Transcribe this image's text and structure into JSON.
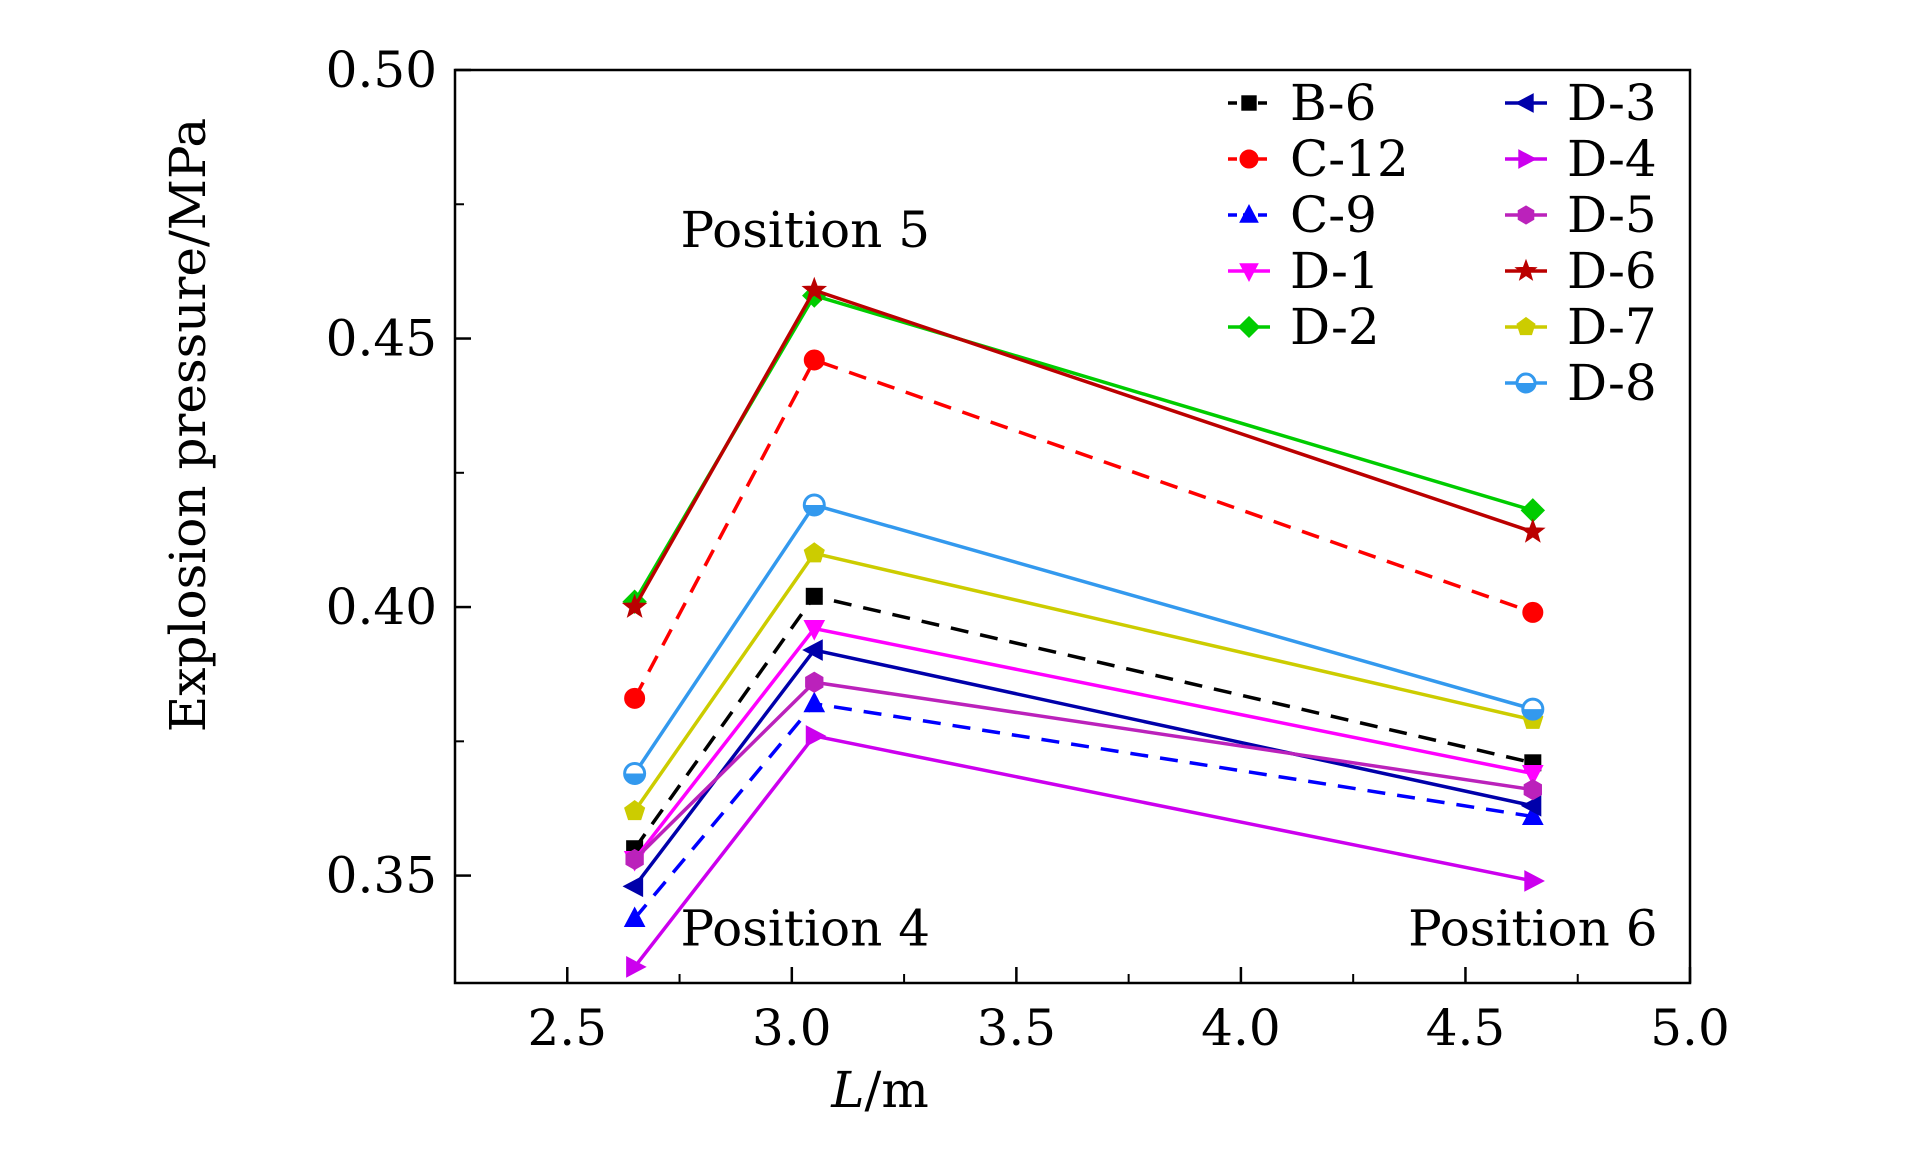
{
  "chart_data": {
    "type": "line",
    "xlabel_italic": "L",
    "xlabel_unit": "/m",
    "ylabel": "Explosion pressure/MPa",
    "xlim": [
      2.25,
      5.0
    ],
    "ylim": [
      0.33,
      0.5
    ],
    "xticks": [
      "2.5",
      "3.0",
      "3.5",
      "4.0",
      "4.5",
      "5.0"
    ],
    "yticks": [
      "0.35",
      "0.40",
      "0.45",
      "0.50"
    ],
    "x": [
      2.65,
      3.05,
      4.65
    ],
    "annotations": [
      {
        "text": "Position 5",
        "x": 3.03,
        "y": 0.467
      },
      {
        "text": "Position 4",
        "x": 3.03,
        "y": 0.337
      },
      {
        "text": "Position 6",
        "x": 4.65,
        "y": 0.337
      }
    ],
    "legend_position": "top-right",
    "series": [
      {
        "name": "B-6",
        "values": [
          0.355,
          0.402,
          0.371
        ],
        "color": "#000000",
        "dash": true,
        "marker": "square"
      },
      {
        "name": "C-12",
        "values": [
          0.383,
          0.446,
          0.399
        ],
        "color": "#ff0000",
        "dash": true,
        "marker": "circle"
      },
      {
        "name": "C-9",
        "values": [
          0.342,
          0.382,
          0.361
        ],
        "color": "#0000ff",
        "dash": true,
        "marker": "triangle-up"
      },
      {
        "name": "D-1",
        "values": [
          0.353,
          0.396,
          0.369
        ],
        "color": "#ff00ff",
        "dash": false,
        "marker": "triangle-down"
      },
      {
        "name": "D-2",
        "values": [
          0.401,
          0.458,
          0.418
        ],
        "color": "#00cc00",
        "dash": false,
        "marker": "diamond"
      },
      {
        "name": "D-3",
        "values": [
          0.348,
          0.392,
          0.363
        ],
        "color": "#0000aa",
        "dash": false,
        "marker": "triangle-left"
      },
      {
        "name": "D-4",
        "values": [
          0.333,
          0.376,
          0.349
        ],
        "color": "#cc00ee",
        "dash": false,
        "marker": "triangle-right"
      },
      {
        "name": "D-5",
        "values": [
          0.353,
          0.386,
          0.366
        ],
        "color": "#bb22bb",
        "dash": false,
        "marker": "hexagon"
      },
      {
        "name": "D-6",
        "values": [
          0.4,
          0.459,
          0.414
        ],
        "color": "#bb0000",
        "dash": false,
        "marker": "star"
      },
      {
        "name": "D-7",
        "values": [
          0.362,
          0.41,
          0.379
        ],
        "color": "#cccc00",
        "dash": false,
        "marker": "pentagon"
      },
      {
        "name": "D-8",
        "values": [
          0.369,
          0.419,
          0.381
        ],
        "color": "#3399ee",
        "dash": false,
        "marker": "half-circle"
      }
    ]
  }
}
